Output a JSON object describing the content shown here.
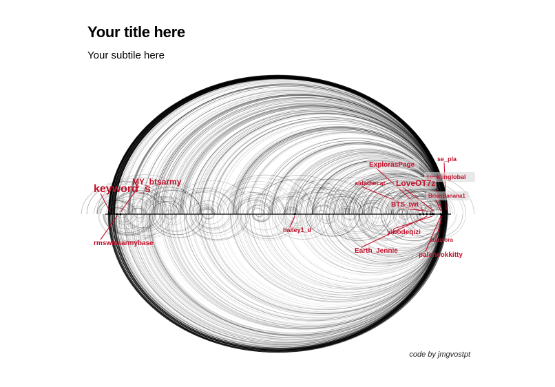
{
  "title": "Your title here",
  "subtitle": "Your subtile here",
  "caption": "code by jmgvostpt",
  "colors": {
    "edge": "#000000",
    "label": "#c0102a",
    "label_box": "#d8d8d8"
  },
  "layout_type": "arc diagram (edges above and below a horizontal node line)",
  "nodes": [
    {
      "name": "keyword_s",
      "size": "large"
    },
    {
      "name": "MY_btsarmy",
      "size": "medium"
    },
    {
      "name": "rmswissarmybase",
      "size": "small"
    },
    {
      "name": "hailey1_d",
      "size": "small"
    },
    {
      "name": "ExplorasPage",
      "size": "small"
    },
    {
      "name": "se_pla",
      "size": "small"
    },
    {
      "name": "seokjinglobal",
      "size": "small"
    },
    {
      "name": "aidathecat",
      "size": "small"
    },
    {
      "name": "LoveOT7z",
      "size": "medium"
    },
    {
      "name": "BrianBanana1",
      "size": "small"
    },
    {
      "name": "BTS_twt",
      "size": "small"
    },
    {
      "name": "yibodeqizi",
      "size": "small"
    },
    {
      "name": "aunzrora",
      "size": "small"
    },
    {
      "name": "Earth_Jennie",
      "size": "small"
    },
    {
      "name": "palcheokkitty",
      "size": "small"
    }
  ]
}
